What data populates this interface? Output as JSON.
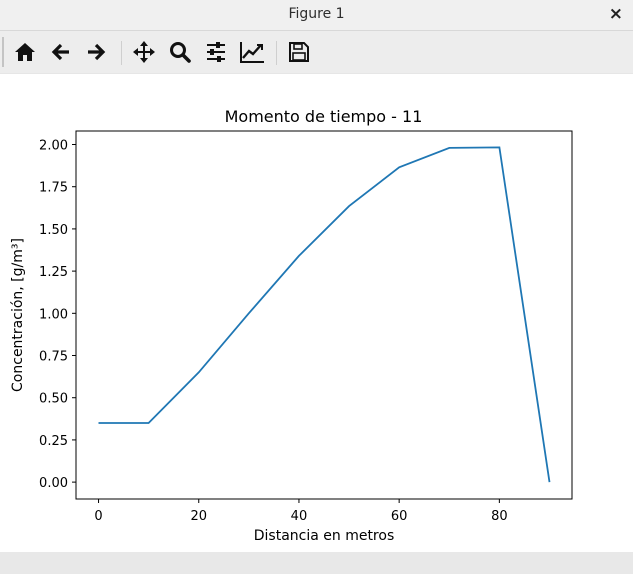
{
  "window": {
    "title": "Figure 1",
    "close_glyph": "×"
  },
  "toolbar": {
    "buttons": [
      {
        "name": "home-icon"
      },
      {
        "name": "back-arrow-icon"
      },
      {
        "name": "forward-arrow-icon"
      },
      {
        "name": "pan-move-icon"
      },
      {
        "name": "zoom-magnifier-icon"
      },
      {
        "name": "configure-subplots-icon"
      },
      {
        "name": "edit-axis-curves-icon"
      },
      {
        "name": "save-floppy-icon"
      }
    ]
  },
  "chart_data": {
    "type": "line",
    "title": "Momento de tiempo - 11",
    "xlabel": "Distancia en metros",
    "ylabel": "Concentración, [g/m³]",
    "xlim": [
      -4.5,
      94.5
    ],
    "ylim": [
      -0.1,
      2.08
    ],
    "xticks": [
      0,
      20,
      40,
      60,
      80
    ],
    "xtick_labels": [
      "0",
      "20",
      "40",
      "60",
      "80"
    ],
    "yticks": [
      0.0,
      0.25,
      0.5,
      0.75,
      1.0,
      1.25,
      1.5,
      1.75,
      2.0
    ],
    "ytick_labels": [
      "0.00",
      "0.25",
      "0.50",
      "0.75",
      "1.00",
      "1.25",
      "1.50",
      "1.75",
      "2.00"
    ],
    "grid": false,
    "series": [
      {
        "color": "#1f77b4",
        "x": [
          0,
          10,
          20,
          30,
          40,
          50,
          60,
          70,
          80,
          90
        ],
        "y": [
          0.35,
          0.35,
          0.65,
          1.0,
          1.34,
          1.635,
          1.865,
          1.98,
          1.983,
          0.0
        ]
      }
    ]
  }
}
